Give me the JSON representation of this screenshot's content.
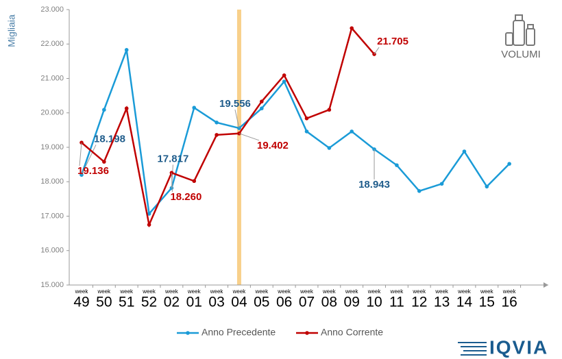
{
  "badge": "VOLUMI",
  "logo": "IQVIA",
  "chart_data": {
    "type": "line",
    "y_label": "Migliaia",
    "x_prefix": "week",
    "categories": [
      "49",
      "50",
      "51",
      "52",
      "02",
      "01",
      "03",
      "04",
      "05",
      "06",
      "07",
      "08",
      "09",
      "10",
      "11",
      "12",
      "13",
      "14",
      "15",
      "16"
    ],
    "highlight": "04",
    "ylim": [
      15000,
      23000
    ],
    "yticks": [
      {
        "value": 15000,
        "label": "15.000"
      },
      {
        "value": 16000,
        "label": "16.000"
      },
      {
        "value": 17000,
        "label": "17.000"
      },
      {
        "value": 18000,
        "label": "18.000"
      },
      {
        "value": 19000,
        "label": "19.000"
      },
      {
        "value": 20000,
        "label": "20.000"
      },
      {
        "value": 21000,
        "label": "21.000"
      },
      {
        "value": 22000,
        "label": "22.000"
      },
      {
        "value": 23000,
        "label": "23.000"
      }
    ],
    "grid": false,
    "legend": "bottom",
    "series": [
      {
        "name": "Anno Precedente",
        "color": "#1a9bd7",
        "label_color": "#1f5c8b",
        "values": [
          18198,
          20090,
          21830,
          17070,
          17817,
          20150,
          19720,
          19556,
          20130,
          20910,
          19460,
          18980,
          19460,
          18943,
          18480,
          17730,
          17940,
          18880,
          17860,
          18520
        ],
        "value_labels": [
          "18.198",
          null,
          null,
          null,
          "17.817",
          null,
          null,
          "19.556",
          null,
          null,
          null,
          null,
          null,
          "18.943",
          null,
          null,
          null,
          null,
          null,
          null
        ]
      },
      {
        "name": "Anno Corrente",
        "color": "#c00000",
        "label_color": "#c00000",
        "values": [
          19136,
          18580,
          20130,
          16750,
          18260,
          18020,
          19360,
          19402,
          20330,
          21090,
          19840,
          20090,
          22460,
          21705,
          null,
          null,
          null,
          null,
          null,
          null
        ],
        "value_labels": [
          "19.136",
          null,
          null,
          null,
          "18.260",
          null,
          null,
          "19.402",
          null,
          null,
          null,
          null,
          null,
          "21.705",
          null,
          null,
          null,
          null,
          null,
          null
        ]
      }
    ]
  }
}
